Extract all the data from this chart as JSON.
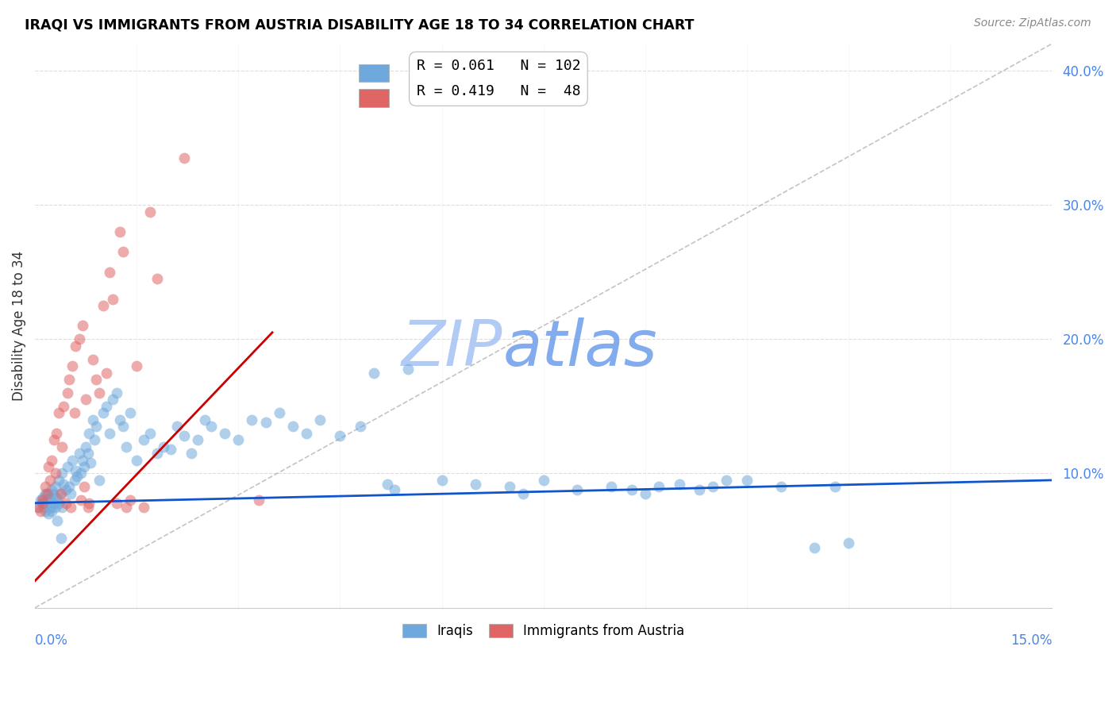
{
  "title": "IRAQI VS IMMIGRANTS FROM AUSTRIA DISABILITY AGE 18 TO 34 CORRELATION CHART",
  "source": "Source: ZipAtlas.com",
  "ylabel": "Disability Age 18 to 34",
  "xlim": [
    0.0,
    15.0
  ],
  "ylim": [
    0.0,
    42.0
  ],
  "legend_blue_R": "0.061",
  "legend_blue_N": "102",
  "legend_pink_R": "0.419",
  "legend_pink_N": " 48",
  "blue_color": "#6fa8dc",
  "pink_color": "#e06666",
  "blue_line_color": "#1155cc",
  "pink_line_color": "#cc0000",
  "right_axis_color": "#4a86e8",
  "watermark_color_zip": "#9fc5e8",
  "watermark_color_atlas": "#6fa8dc",
  "background_color": "#ffffff",
  "blue_line_x": [
    0.0,
    15.0
  ],
  "blue_line_y": [
    7.8,
    9.5
  ],
  "pink_line_x": [
    0.0,
    3.5
  ],
  "pink_line_y": [
    2.0,
    20.5
  ],
  "diag_line_x": [
    0.0,
    15.0
  ],
  "diag_line_y": [
    0.0,
    42.0
  ],
  "iraqis_x": [
    0.05,
    0.08,
    0.1,
    0.12,
    0.13,
    0.15,
    0.15,
    0.17,
    0.18,
    0.2,
    0.2,
    0.22,
    0.23,
    0.25,
    0.25,
    0.27,
    0.28,
    0.3,
    0.3,
    0.32,
    0.35,
    0.35,
    0.37,
    0.4,
    0.4,
    0.42,
    0.45,
    0.48,
    0.5,
    0.52,
    0.55,
    0.58,
    0.6,
    0.62,
    0.65,
    0.68,
    0.7,
    0.72,
    0.75,
    0.78,
    0.8,
    0.82,
    0.85,
    0.88,
    0.9,
    0.95,
    1.0,
    1.05,
    1.1,
    1.15,
    1.2,
    1.25,
    1.3,
    1.35,
    1.4,
    1.5,
    1.6,
    1.7,
    1.8,
    1.9,
    2.0,
    2.1,
    2.2,
    2.3,
    2.4,
    2.5,
    2.6,
    2.8,
    3.0,
    3.2,
    3.4,
    3.6,
    3.8,
    4.0,
    4.2,
    4.5,
    4.8,
    5.0,
    5.5,
    6.0,
    6.5,
    7.0,
    7.5,
    8.0,
    8.5,
    9.0,
    9.5,
    10.0,
    10.5,
    11.0,
    11.5,
    12.0,
    5.2,
    5.3,
    7.2,
    8.8,
    9.2,
    9.8,
    10.2,
    11.8,
    0.33,
    0.38
  ],
  "iraqis_y": [
    7.5,
    8.0,
    7.8,
    8.2,
    7.5,
    8.5,
    7.2,
    8.0,
    7.8,
    8.5,
    7.0,
    8.2,
    7.5,
    8.8,
    7.2,
    8.5,
    7.8,
    9.0,
    7.5,
    8.2,
    9.5,
    7.8,
    8.5,
    10.0,
    7.5,
    9.2,
    8.8,
    10.5,
    9.0,
    8.5,
    11.0,
    9.5,
    10.2,
    9.8,
    11.5,
    10.0,
    11.0,
    10.5,
    12.0,
    11.5,
    13.0,
    10.8,
    14.0,
    12.5,
    13.5,
    9.5,
    14.5,
    15.0,
    13.0,
    15.5,
    16.0,
    14.0,
    13.5,
    12.0,
    14.5,
    11.0,
    12.5,
    13.0,
    11.5,
    12.0,
    11.8,
    13.5,
    12.8,
    11.5,
    12.5,
    14.0,
    13.5,
    13.0,
    12.5,
    14.0,
    13.8,
    14.5,
    13.5,
    13.0,
    14.0,
    12.8,
    13.5,
    17.5,
    17.8,
    9.5,
    9.2,
    9.0,
    9.5,
    8.8,
    9.0,
    8.5,
    9.2,
    9.0,
    9.5,
    9.0,
    4.5,
    4.8,
    9.2,
    8.8,
    8.5,
    8.8,
    9.0,
    8.8,
    9.5,
    9.0,
    6.5,
    5.2
  ],
  "austria_x": [
    0.05,
    0.08,
    0.1,
    0.12,
    0.15,
    0.17,
    0.2,
    0.22,
    0.25,
    0.28,
    0.3,
    0.32,
    0.35,
    0.38,
    0.4,
    0.42,
    0.45,
    0.48,
    0.5,
    0.52,
    0.55,
    0.58,
    0.6,
    0.65,
    0.68,
    0.7,
    0.72,
    0.75,
    0.78,
    0.8,
    0.85,
    0.9,
    0.95,
    1.0,
    1.05,
    1.1,
    1.15,
    1.2,
    1.25,
    1.3,
    1.35,
    1.4,
    1.5,
    1.6,
    1.7,
    1.8,
    2.2,
    3.3
  ],
  "austria_y": [
    7.5,
    7.2,
    8.0,
    7.8,
    9.0,
    8.5,
    10.5,
    9.5,
    11.0,
    12.5,
    10.0,
    13.0,
    14.5,
    8.5,
    12.0,
    15.0,
    7.8,
    16.0,
    17.0,
    7.5,
    18.0,
    14.5,
    19.5,
    20.0,
    8.0,
    21.0,
    9.0,
    15.5,
    7.5,
    7.8,
    18.5,
    17.0,
    16.0,
    22.5,
    17.5,
    25.0,
    23.0,
    7.8,
    28.0,
    26.5,
    7.5,
    8.0,
    18.0,
    7.5,
    29.5,
    24.5,
    33.5,
    8.0
  ]
}
